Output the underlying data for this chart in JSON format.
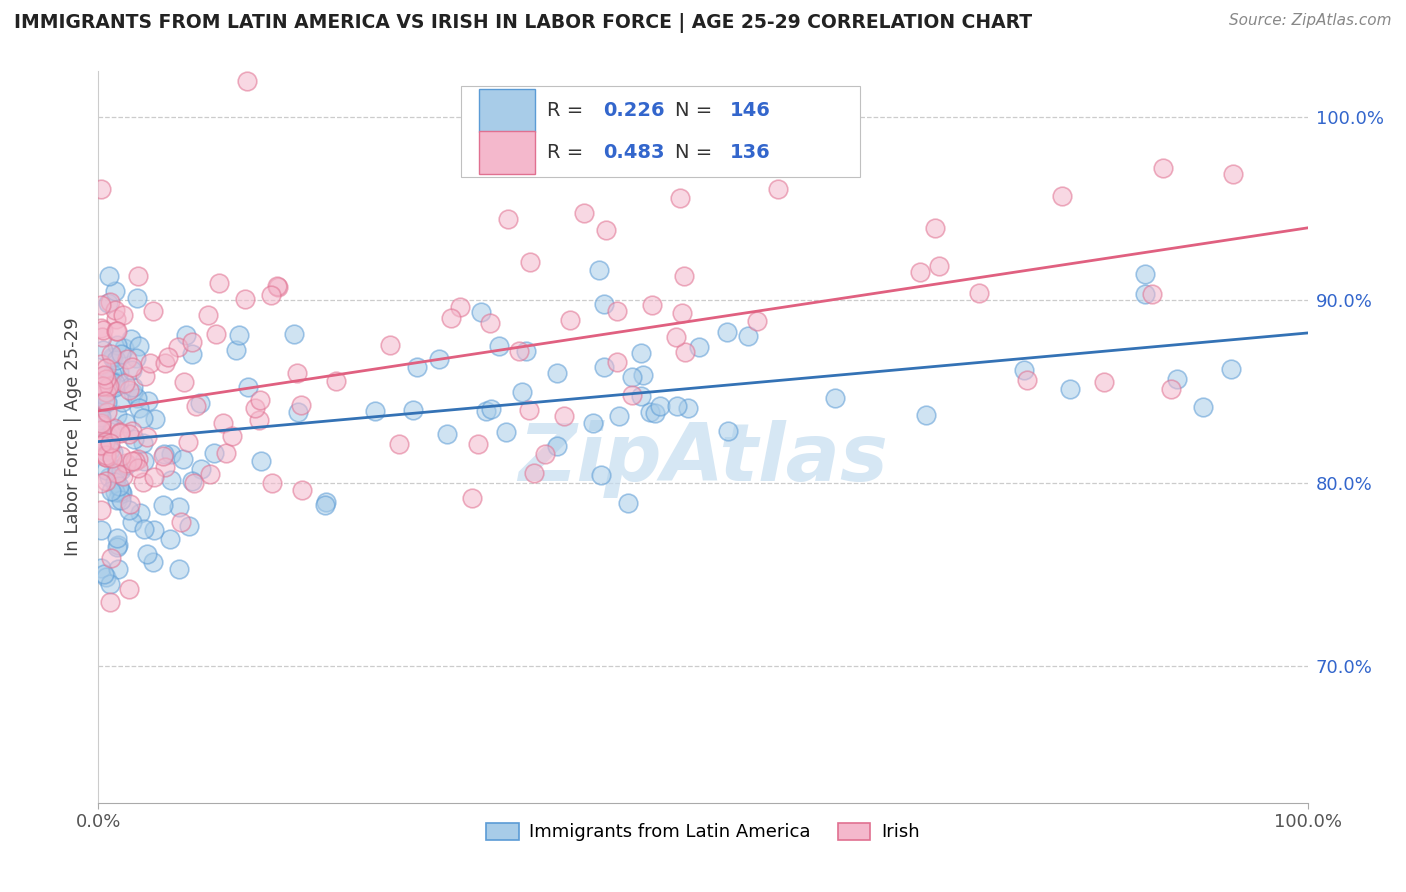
{
  "title": "IMMIGRANTS FROM LATIN AMERICA VS IRISH IN LABOR FORCE | AGE 25-29 CORRELATION CHART",
  "source": "Source: ZipAtlas.com",
  "ylabel_left": "In Labor Force | Age 25-29",
  "legend_label_blue": "Immigrants from Latin America",
  "legend_label_pink": "Irish",
  "R_blue": 0.226,
  "N_blue": 146,
  "R_pink": 0.483,
  "N_pink": 136,
  "color_blue_fill": "#a8cce8",
  "color_blue_edge": "#5b9bd5",
  "color_pink_fill": "#f4b8cc",
  "color_pink_edge": "#e07090",
  "line_color_blue": "#3472b5",
  "line_color_pink": "#e06080",
  "legend_text_color": "#3366cc",
  "xmin": 0.0,
  "xmax": 1.0,
  "ymin": 0.625,
  "ymax": 1.025,
  "yticks": [
    0.7,
    0.8,
    0.9,
    1.0
  ],
  "ytick_labels": [
    "70.0%",
    "80.0%",
    "90.0%",
    "100.0%"
  ],
  "xtick_show": [
    "0.0%",
    "100.0%"
  ],
  "grid_color": "#cccccc",
  "bg_color": "#ffffff",
  "title_color": "#222222",
  "source_color": "#888888",
  "watermark_color": "#c5ddf0",
  "scatter_alpha": 0.55,
  "scatter_size": 180,
  "scatter_linewidth": 1.2
}
